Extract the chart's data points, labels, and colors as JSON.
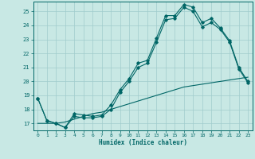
{
  "xlabel": "Humidex (Indice chaleur)",
  "background_color": "#c8e8e4",
  "line_color": "#006666",
  "grid_color": "#a0cccc",
  "xlim": [
    -0.5,
    23.5
  ],
  "ylim": [
    16.5,
    25.7
  ],
  "yticks": [
    17,
    18,
    19,
    20,
    21,
    22,
    23,
    24,
    25
  ],
  "xticks": [
    0,
    1,
    2,
    3,
    4,
    5,
    6,
    7,
    8,
    9,
    10,
    11,
    12,
    13,
    14,
    15,
    16,
    17,
    18,
    19,
    20,
    21,
    22,
    23
  ],
  "line1_x": [
    0,
    1,
    2,
    3,
    4,
    5,
    6,
    7,
    8,
    9,
    10,
    11,
    12,
    13,
    14,
    15,
    16,
    17,
    18,
    19,
    20,
    21,
    22,
    23
  ],
  "line1_y": [
    18.8,
    17.2,
    17.0,
    16.7,
    17.7,
    17.6,
    17.5,
    17.6,
    18.3,
    19.4,
    20.2,
    21.3,
    21.5,
    23.1,
    24.7,
    24.7,
    25.5,
    25.3,
    24.2,
    24.5,
    23.8,
    22.9,
    21.0,
    20.0
  ],
  "line2_x": [
    0,
    1,
    2,
    3,
    4,
    5,
    6,
    7,
    8,
    9,
    10,
    11,
    12,
    13,
    14,
    15,
    16,
    17,
    18,
    19,
    20,
    21,
    22,
    23
  ],
  "line2_y": [
    18.8,
    17.2,
    17.0,
    16.7,
    17.5,
    17.4,
    17.4,
    17.5,
    18.0,
    19.2,
    20.0,
    21.0,
    21.3,
    22.8,
    24.4,
    24.5,
    25.3,
    25.0,
    23.9,
    24.2,
    23.7,
    22.8,
    20.9,
    19.9
  ],
  "line3_x": [
    0,
    1,
    2,
    3,
    4,
    5,
    6,
    7,
    8,
    9,
    10,
    11,
    12,
    13,
    14,
    15,
    16,
    17,
    18,
    19,
    20,
    21,
    22,
    23
  ],
  "line3_y": [
    17.0,
    17.0,
    17.0,
    17.1,
    17.3,
    17.5,
    17.7,
    17.8,
    18.0,
    18.2,
    18.4,
    18.6,
    18.8,
    19.0,
    19.2,
    19.4,
    19.6,
    19.7,
    19.8,
    19.9,
    20.0,
    20.1,
    20.2,
    20.3
  ]
}
